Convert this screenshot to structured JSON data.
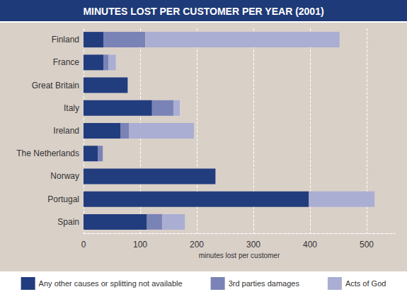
{
  "chart_data": {
    "type": "bar",
    "title": "MINUTES LOST PER CUSTOMER PER YEAR (2001)",
    "orientation": "horizontal",
    "stacked": true,
    "categories": [
      "Finland",
      "France",
      "Great Britain",
      "Italy",
      "Ireland",
      "The Netherlands",
      "Norway",
      "Portugal",
      "Spain"
    ],
    "series": [
      {
        "name": "Any other causes or splitting not available",
        "color": "#223d7e",
        "values": [
          35,
          35,
          78,
          121,
          65,
          25,
          233,
          398,
          112
        ]
      },
      {
        "name": "3rd parties damages",
        "color": "#7a83b6",
        "values": [
          74,
          9,
          0,
          38,
          15,
          9,
          0,
          0,
          27
        ]
      },
      {
        "name": "Acts of God",
        "color": "#aaaed2",
        "values": [
          343,
          13,
          0,
          11,
          115,
          0,
          0,
          116,
          40
        ]
      }
    ],
    "xlabel": "minutes lost per customer",
    "xlim": [
      0,
      550
    ],
    "xticks": [
      0,
      100,
      200,
      300,
      400,
      500
    ],
    "grid": true,
    "legend": "bottom"
  }
}
